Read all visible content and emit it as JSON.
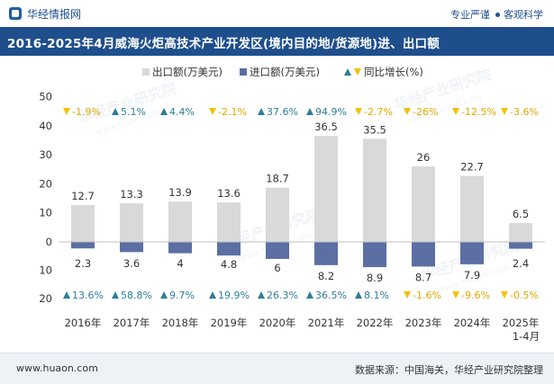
{
  "header": {
    "logo_text": "华经情报网",
    "tagline_left": "专业严谨",
    "tagline_right": "客观科学"
  },
  "title": "2016-2025年4月威海火炬高技术产业开发区(境内目的地/货源地)进、出口额",
  "footer": {
    "url": "www.huaon.com",
    "source": "数据来源：中国海关，华经产业研究院整理"
  },
  "watermark": {
    "text_cn": "华经产业研究院",
    "text_url": "www.huaon.com"
  },
  "colors": {
    "export": "#d9d9d9",
    "import": "#5b6fa3",
    "growth_up": "#2e7d9a",
    "growth_down": "#f5c000",
    "brand": "#1f4e8c"
  },
  "chart_data": {
    "type": "bar",
    "categories": [
      "2016年",
      "2017年",
      "2018年",
      "2019年",
      "2020年",
      "2021年",
      "2022年",
      "2023年",
      "2024年",
      "2025年\n1-4月"
    ],
    "series": [
      {
        "name": "出口额(万美元)",
        "values": [
          12.7,
          13.3,
          13.9,
          13.6,
          18.7,
          36.5,
          35.5,
          26,
          22.7,
          6.5
        ],
        "direction": "up"
      },
      {
        "name": "进口额(万美元)",
        "values": [
          2.3,
          3.6,
          4,
          4.8,
          6,
          8.2,
          8.9,
          8.7,
          7.9,
          2.4
        ],
        "direction": "down"
      }
    ],
    "growth_legend": "同比增长(%)",
    "export_growth": [
      "-1.9%",
      "5.1%",
      "4.4%",
      "-2.1%",
      "37.6%",
      "94.9%",
      "-2.7%",
      "-26%",
      "-12.5%",
      "-3.6%"
    ],
    "import_growth": [
      "13.6%",
      "58.8%",
      "9.7%",
      "19.9%",
      "26.3%",
      "36.5%",
      "8.1%",
      "-1.6%",
      "-9.6%",
      "-0.5%"
    ],
    "y_ticks_upper": [
      50,
      40,
      30,
      20,
      10,
      0
    ],
    "y_ticks_lower": [
      10,
      20
    ],
    "ylim": [
      -20,
      50
    ],
    "legend_position": "top-center"
  }
}
